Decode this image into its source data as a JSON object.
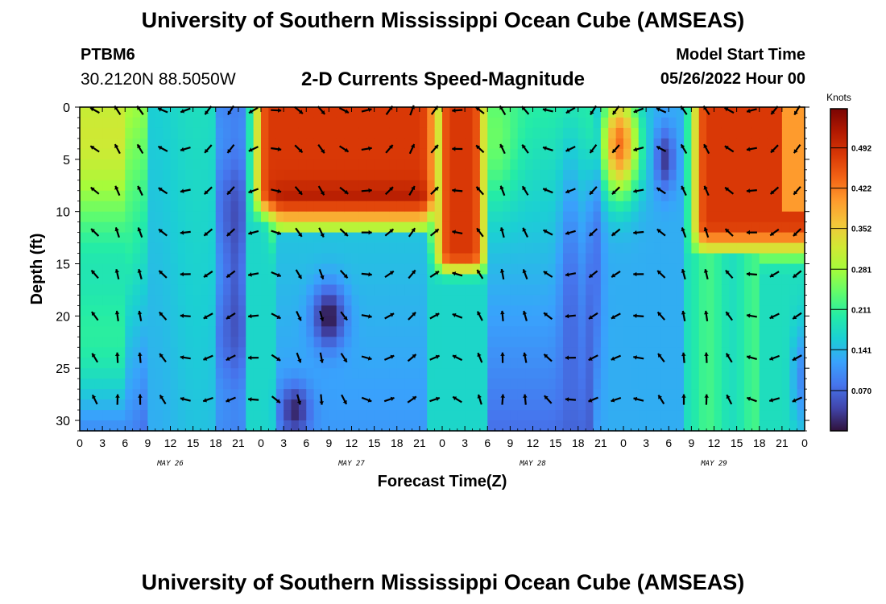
{
  "header": {
    "title": "University of Southern Mississippi Ocean Cube (AMSEAS)",
    "station": "PTBM6",
    "coords": "30.2120N  88.5050W",
    "subtitle": "2-D Currents Speed-Magnitude",
    "model_label": "Model Start Time",
    "model_time": "05/26/2022 Hour 00"
  },
  "footer": {
    "title": "University of Southern Mississippi Ocean Cube (AMSEAS)"
  },
  "chart_data": {
    "type": "heatmap",
    "title": "2-D Currents Speed-Magnitude",
    "xlabel": "Forecast Time(Z)",
    "ylabel": "Depth (ft)",
    "x_range_hours": [
      0,
      96
    ],
    "y_range_ft": [
      0,
      31
    ],
    "x_tick_labels": [
      "0",
      "3",
      "6",
      "9",
      "12",
      "15",
      "18",
      "21",
      "0",
      "3",
      "6",
      "9",
      "12",
      "15",
      "18",
      "21",
      "0",
      "3",
      "6",
      "9",
      "12",
      "15",
      "18",
      "21",
      "0",
      "3",
      "6",
      "9",
      "12",
      "15",
      "18",
      "21",
      "0"
    ],
    "day_labels": [
      {
        "label": "MAY 26",
        "hour": 12
      },
      {
        "label": "MAY 27",
        "hour": 36
      },
      {
        "label": "MAY 28",
        "hour": 60
      },
      {
        "label": "MAY 29",
        "hour": 84
      }
    ],
    "y_ticks": [
      0,
      5,
      10,
      15,
      20,
      25,
      30
    ],
    "colorbar": {
      "unit": "Knots",
      "range": [
        0,
        0.56
      ],
      "tick_values": [
        0.07,
        0.141,
        0.211,
        0.281,
        0.352,
        0.422,
        0.492
      ],
      "tick_labels": [
        "0.070",
        "0.141",
        "0.211",
        "0.281",
        "0.352",
        "0.422",
        "0.492"
      ],
      "stops": [
        "#30123b",
        "#4145ab",
        "#4675ed",
        "#39a2fc",
        "#1bcfd4",
        "#24eca6",
        "#61fc6c",
        "#a4fc3b",
        "#d1e834",
        "#f3c63a",
        "#fe9b2d",
        "#f36315",
        "#d93806",
        "#b11901",
        "#7a0403"
      ]
    },
    "arrow_depths_ft": [
      0,
      4,
      8,
      12,
      16,
      20,
      24,
      28
    ],
    "arrow_times_hours": [
      2,
      5,
      8,
      11,
      14,
      17,
      20,
      23,
      26,
      29,
      32,
      35,
      38,
      41,
      44,
      47,
      50,
      53,
      56,
      59,
      62,
      65,
      68,
      71,
      74,
      77,
      80,
      83,
      86,
      89,
      92,
      95
    ]
  }
}
